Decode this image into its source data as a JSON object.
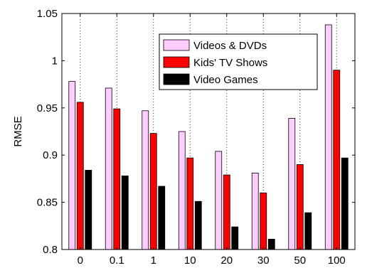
{
  "chart_data": {
    "type": "bar",
    "categories": [
      "0",
      "0.1",
      "1",
      "10",
      "20",
      "30",
      "50",
      "100"
    ],
    "series": [
      {
        "name": "Videos & DVDs",
        "color": "#ffccff",
        "values": [
          0.978,
          0.971,
          0.947,
          0.925,
          0.904,
          0.881,
          0.939,
          1.038
        ]
      },
      {
        "name": "Kids' TV Shows",
        "color": "#ff0000",
        "values": [
          0.956,
          0.949,
          0.923,
          0.897,
          0.879,
          0.86,
          0.89,
          0.99
        ]
      },
      {
        "name": "Video Games",
        "color": "#000000",
        "values": [
          0.884,
          0.878,
          0.867,
          0.851,
          0.824,
          0.811,
          0.839,
          0.897
        ]
      }
    ],
    "ylabel": "RMSE",
    "xlabel": "",
    "ylim": [
      0.8,
      1.05
    ],
    "yticks": [
      "0.8",
      "0.85",
      "0.9",
      "0.95",
      "1",
      "1.05"
    ],
    "grid": "x-dotted",
    "legend_position": "top-right"
  }
}
